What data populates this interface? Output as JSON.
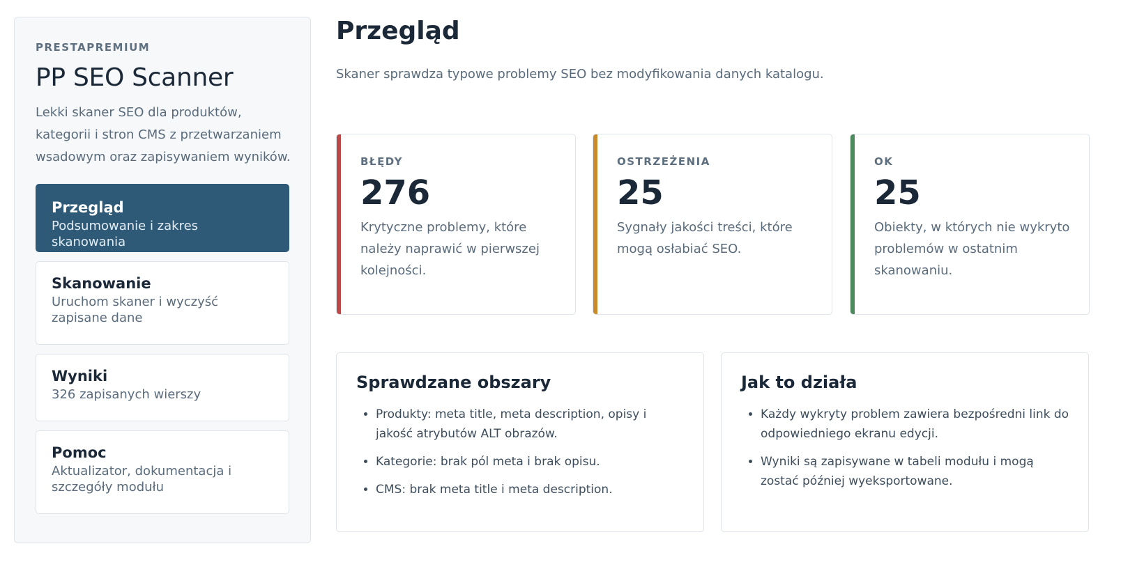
{
  "sidebar": {
    "brand": "PRESTAPREMIUM",
    "title": "PP SEO Scanner",
    "description": "Lekki skaner SEO dla produktów, kategorii i stron CMS z przetwarzaniem wsadowym oraz zapisywaniem wyników.",
    "nav": [
      {
        "title": "Przegląd",
        "subtitle": "Podsumowanie i zakres skanowania",
        "active": true
      },
      {
        "title": "Skanowanie",
        "subtitle": "Uruchom skaner i wyczyść zapisane dane",
        "active": false
      },
      {
        "title": "Wyniki",
        "subtitle": "326 zapisanych wierszy",
        "active": false
      },
      {
        "title": "Pomoc",
        "subtitle": "Aktualizator, dokumentacja i szczegóły modułu",
        "active": false
      }
    ]
  },
  "main": {
    "title": "Przegląd",
    "description": "Skaner sprawdza typowe problemy SEO bez modyfikowania danych katalogu.",
    "stats": [
      {
        "label": "BŁĘDY",
        "value": "276",
        "description": "Krytyczne problemy, które należy naprawić w pierwszej kolejności.",
        "color": "#b94a48"
      },
      {
        "label": "OSTRZEŻENIA",
        "value": "25",
        "description": "Sygnały jakości treści, które mogą osłabiać SEO.",
        "color": "#c98a2b"
      },
      {
        "label": "OK",
        "value": "25",
        "description": "Obiekty, w których nie wykryto problemów w ostatnim skanowaniu.",
        "color": "#4e8a5e"
      }
    ],
    "panels": [
      {
        "title": "Sprawdzane obszary",
        "items": [
          "Produkty: meta title, meta description, opisy i jakość atrybutów ALT obrazów.",
          "Kategorie: brak pól meta i brak opisu.",
          "CMS: brak meta title i meta description."
        ]
      },
      {
        "title": "Jak to działa",
        "items": [
          "Każdy wykryty problem zawiera bezpośredni link do odpowiedniego ekranu edycji.",
          "Wyniki są zapisywane w tabeli modułu i mogą zostać później wyeksportowane."
        ]
      }
    ]
  },
  "colors": {
    "accent": "#2e5a78",
    "error": "#b94a48",
    "warning": "#c98a2b",
    "ok": "#4e8a5e"
  }
}
